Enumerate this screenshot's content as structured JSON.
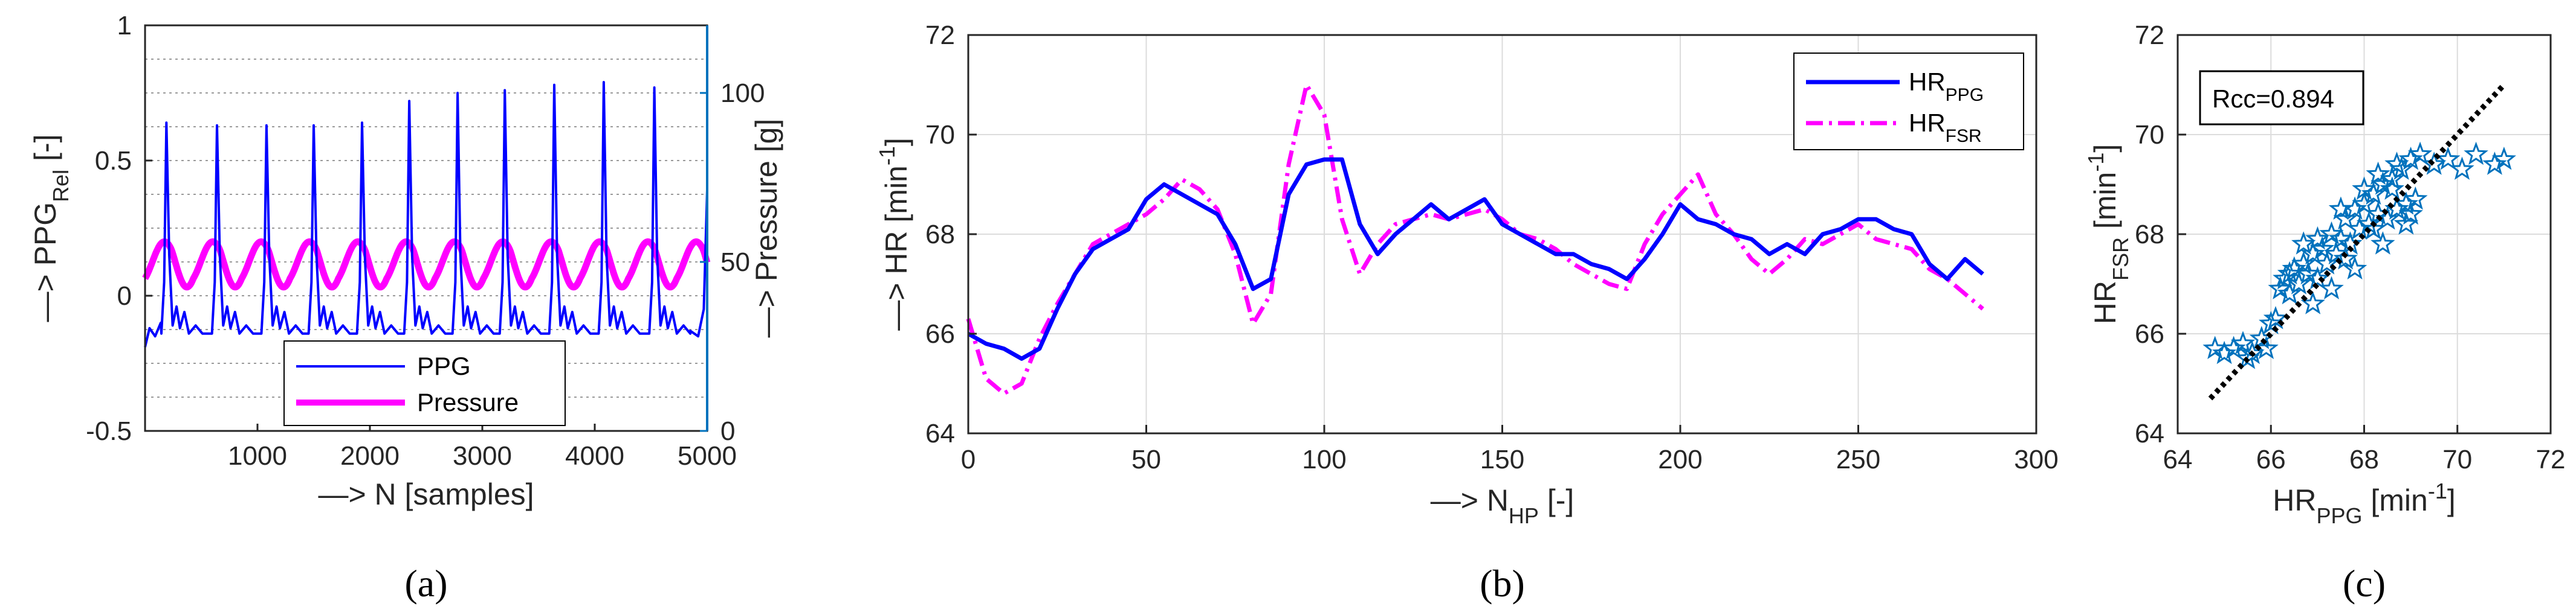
{
  "panels": [
    "(a)",
    "(b)",
    "(c)"
  ],
  "chart_data": [
    {
      "panel": "(a)",
      "type": "line",
      "xlabel": "—> N [samples]",
      "ylabel_left": {
        "arrow": "—> ",
        "main": "PPG",
        "sub": "Rel",
        "tail": " [-]"
      },
      "ylabel_right": "—> Pressure [g]",
      "xlim": [
        0,
        5000
      ],
      "ylim_left": [
        -0.5,
        1
      ],
      "ylim_right": [
        0,
        120
      ],
      "xticks": [
        1000,
        2000,
        3000,
        4000,
        5000
      ],
      "xtick_labels": [
        "1000",
        "2000",
        "3000",
        "4000",
        "5000"
      ],
      "yticks_left": [
        -0.5,
        0,
        0.5,
        1
      ],
      "ytick_labels_left": [
        "-0.5",
        "0",
        "0.5",
        "1"
      ],
      "yticks_right": [
        0,
        50,
        100
      ],
      "ytick_labels_right": [
        "0",
        "50",
        "100"
      ],
      "right_axis_color": "#0072BD",
      "legend": {
        "position": "bottom-center",
        "entries": [
          "PPG",
          "Pressure"
        ]
      },
      "series": [
        {
          "name": "PPG",
          "color": "#0000FF",
          "axis": "left",
          "beat_peaks_x": [
            190,
            640,
            1080,
            1500,
            1930,
            2350,
            2780,
            3200,
            3640,
            4080,
            4530
          ],
          "beat_peaks_y": [
            0.64,
            0.63,
            0.63,
            0.63,
            0.64,
            0.72,
            0.75,
            0.76,
            0.78,
            0.79,
            0.77
          ],
          "baseline_y": -0.13,
          "end_point": [
            5000,
            0.39
          ]
        },
        {
          "name": "Pressure",
          "color": "#FF00FF",
          "axis": "right",
          "mean": 50,
          "amplitude": 6,
          "period_samples": 430
        }
      ]
    },
    {
      "panel": "(b)",
      "type": "line",
      "xlabel": {
        "arrow": "—> ",
        "main": "N",
        "sub": "HP",
        "tail": " [-]"
      },
      "ylabel": {
        "arrow": "—> ",
        "main": "HR [min",
        "sup": "-1",
        "tail": "]"
      },
      "xlim": [
        0,
        300
      ],
      "ylim": [
        64,
        72
      ],
      "xticks": [
        0,
        50,
        100,
        150,
        200,
        250,
        300
      ],
      "xtick_labels": [
        "0",
        "50",
        "100",
        "150",
        "200",
        "250",
        "300"
      ],
      "yticks": [
        64,
        66,
        68,
        70,
        72
      ],
      "ytick_labels": [
        "64",
        "66",
        "68",
        "70",
        "72"
      ],
      "grid": true,
      "legend": {
        "position": "top-right"
      },
      "x": [
        0,
        5,
        10,
        15,
        20,
        25,
        30,
        35,
        40,
        45,
        50,
        55,
        60,
        65,
        70,
        75,
        80,
        85,
        90,
        95,
        100,
        105,
        110,
        115,
        120,
        125,
        130,
        135,
        140,
        145,
        150,
        155,
        160,
        165,
        170,
        175,
        180,
        185,
        190,
        195,
        200,
        205,
        210,
        215,
        220,
        225,
        230,
        235,
        240,
        245,
        250,
        255,
        260,
        265,
        270,
        275,
        280,
        285
      ],
      "series": [
        {
          "name": "HR",
          "sub": "PPG",
          "color": "#0000FF",
          "dash": "solid",
          "values": [
            66.0,
            65.8,
            65.7,
            65.5,
            65.7,
            66.5,
            67.2,
            67.7,
            67.9,
            68.1,
            68.7,
            69.0,
            68.8,
            68.6,
            68.4,
            67.8,
            66.9,
            67.1,
            68.8,
            69.4,
            69.5,
            69.5,
            68.2,
            67.6,
            68.0,
            68.3,
            68.6,
            68.3,
            68.5,
            68.7,
            68.2,
            68.0,
            67.8,
            67.6,
            67.6,
            67.4,
            67.3,
            67.1,
            67.5,
            68.0,
            68.6,
            68.3,
            68.2,
            68.0,
            67.9,
            67.6,
            67.8,
            67.6,
            68.0,
            68.1,
            68.3,
            68.3,
            68.1,
            68.0,
            67.4,
            67.1,
            67.5,
            67.2
          ]
        },
        {
          "name": "HR",
          "sub": "FSR",
          "color": "#FF00FF",
          "dash": "dashdot",
          "values": [
            66.3,
            65.1,
            64.8,
            65.0,
            65.9,
            66.6,
            67.2,
            67.8,
            68.0,
            68.2,
            68.4,
            68.7,
            69.1,
            68.9,
            68.5,
            67.6,
            66.2,
            66.8,
            69.4,
            71.0,
            70.4,
            68.3,
            67.2,
            67.8,
            68.2,
            68.3,
            68.4,
            68.3,
            68.4,
            68.5,
            68.3,
            68.0,
            67.9,
            67.7,
            67.4,
            67.2,
            67.0,
            66.9,
            67.8,
            68.4,
            68.8,
            69.2,
            68.4,
            68.0,
            67.5,
            67.2,
            67.5,
            67.9,
            67.8,
            68.0,
            68.2,
            67.9,
            67.8,
            67.7,
            67.3,
            67.1,
            66.8,
            66.5
          ]
        }
      ]
    },
    {
      "panel": "(c)",
      "type": "scatter",
      "xlabel": {
        "main": "HR",
        "sub": "PPG",
        "tail": " [min",
        "sup": "-1",
        "tail2": "]"
      },
      "ylabel": {
        "main": "HR",
        "sub": "FSR",
        "tail": " [min",
        "sup": "-1",
        "tail2": "]"
      },
      "xlim": [
        64,
        72
      ],
      "ylim": [
        64,
        72
      ],
      "xticks": [
        64,
        66,
        68,
        70,
        72
      ],
      "xtick_labels": [
        "64",
        "66",
        "68",
        "70",
        "72"
      ],
      "yticks": [
        64,
        66,
        68,
        70,
        72
      ],
      "ytick_labels": [
        "64",
        "66",
        "68",
        "70",
        "72"
      ],
      "grid": true,
      "annotation": "Rcc=0.894",
      "marker": "star",
      "marker_color": "#0072BD",
      "points": [
        [
          64.8,
          65.7
        ],
        [
          65.0,
          65.6
        ],
        [
          65.2,
          65.7
        ],
        [
          65.4,
          65.8
        ],
        [
          65.6,
          65.6
        ],
        [
          65.8,
          65.9
        ],
        [
          65.5,
          65.5
        ],
        [
          65.9,
          65.7
        ],
        [
          66.0,
          66.2
        ],
        [
          66.2,
          66.9
        ],
        [
          66.3,
          67.1
        ],
        [
          66.4,
          66.8
        ],
        [
          66.5,
          67.3
        ],
        [
          66.6,
          67.0
        ],
        [
          66.7,
          67.4
        ],
        [
          66.8,
          67.2
        ],
        [
          66.9,
          67.6
        ],
        [
          67.0,
          67.1
        ],
        [
          67.1,
          67.7
        ],
        [
          67.2,
          67.4
        ],
        [
          67.3,
          68.0
        ],
        [
          67.4,
          67.6
        ],
        [
          67.5,
          67.9
        ],
        [
          67.6,
          68.3
        ],
        [
          67.7,
          67.8
        ],
        [
          67.8,
          68.5
        ],
        [
          67.9,
          68.1
        ],
        [
          68.0,
          68.6
        ],
        [
          68.1,
          68.2
        ],
        [
          68.2,
          68.8
        ],
        [
          68.3,
          68.4
        ],
        [
          68.4,
          69.0
        ],
        [
          68.5,
          68.3
        ],
        [
          68.6,
          69.1
        ],
        [
          68.7,
          68.5
        ],
        [
          68.8,
          69.3
        ],
        [
          68.9,
          68.6
        ],
        [
          69.0,
          69.5
        ],
        [
          69.1,
          68.7
        ],
        [
          69.2,
          69.6
        ],
        [
          69.5,
          69.4
        ],
        [
          69.8,
          69.5
        ],
        [
          70.1,
          69.3
        ],
        [
          70.4,
          69.6
        ],
        [
          70.8,
          69.4
        ],
        [
          71.0,
          69.5
        ],
        [
          66.4,
          67.2
        ],
        [
          67.0,
          67.9
        ],
        [
          67.6,
          67.5
        ],
        [
          68.2,
          68.1
        ],
        [
          68.6,
          68.9
        ],
        [
          67.3,
          66.9
        ],
        [
          67.8,
          67.3
        ],
        [
          68.4,
          67.8
        ],
        [
          68.9,
          68.2
        ],
        [
          69.0,
          68.4
        ],
        [
          66.9,
          66.6
        ],
        [
          66.1,
          66.3
        ],
        [
          66.7,
          67.8
        ],
        [
          67.5,
          68.5
        ],
        [
          68.0,
          68.9
        ],
        [
          68.3,
          69.2
        ],
        [
          68.7,
          69.4
        ]
      ],
      "fit_line": {
        "from": [
          64.7,
          64.7
        ],
        "to": [
          71.0,
          71.0
        ],
        "style": "dotted",
        "color": "#000000"
      }
    }
  ]
}
